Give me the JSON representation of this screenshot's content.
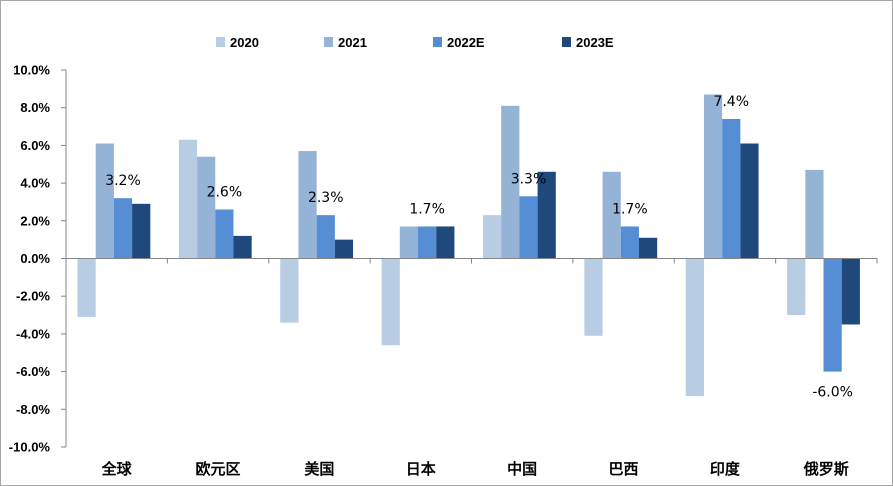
{
  "chart_data": {
    "type": "bar",
    "title": "",
    "xlabel": "",
    "ylabel": "",
    "categories": [
      "全球",
      "欧元区",
      "美国",
      "日本",
      "中国",
      "巴西",
      "印度",
      "俄罗斯"
    ],
    "series": [
      {
        "name": "2020",
        "color": "#b8cce4",
        "values": [
          -3.1,
          6.3,
          -3.4,
          -4.6,
          2.3,
          -4.1,
          -7.3,
          -3.0
        ]
      },
      {
        "name": "2021",
        "color": "#95b3d7",
        "values": [
          6.1,
          5.4,
          5.7,
          1.7,
          8.1,
          4.6,
          8.7,
          4.7
        ]
      },
      {
        "name": "2022E",
        "color": "#558ed5",
        "values": [
          3.2,
          2.6,
          2.3,
          1.7,
          3.3,
          1.7,
          7.4,
          -6.0
        ]
      },
      {
        "name": "2023E",
        "color": "#1f497d",
        "values": [
          2.9,
          1.2,
          1.0,
          1.7,
          4.6,
          1.1,
          6.1,
          -3.5
        ]
      }
    ],
    "ylim": [
      -10,
      10
    ],
    "ytick_step": 2,
    "ytick_labels": [
      "10.0%",
      "8.0%",
      "6.0%",
      "4.0%",
      "2.0%",
      "0.0%",
      "-2.0%",
      "-4.0%",
      "-6.0%",
      "-8.0%",
      "-10.0%"
    ],
    "data_labels": {
      "series": "2022E",
      "labels": [
        "3.2%",
        "2.6%",
        "2.3%",
        "1.7%",
        "3.3%",
        "1.7%",
        "7.4%",
        "-6.0%"
      ]
    },
    "legend": "top",
    "grid": false
  }
}
